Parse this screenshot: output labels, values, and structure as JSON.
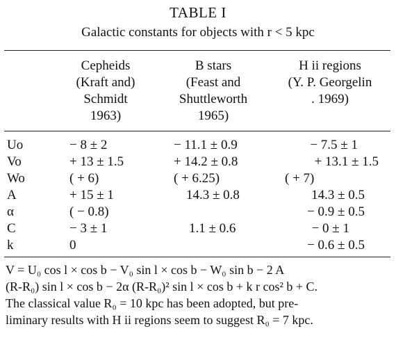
{
  "title": "TABLE I",
  "subtitle": "Galactic constants for objects with r < 5 kpc",
  "columns": [
    [
      "Cepheids",
      "(Kraft and)",
      "Schmidt",
      "1963)"
    ],
    [
      "B stars",
      "(Feast and",
      "Shuttleworth",
      "1965)"
    ],
    [
      "H ii regions",
      "(Y. P. Georgelin",
      ". 1969)"
    ]
  ],
  "rows": [
    {
      "label": "Uo",
      "c1": "− 8 ± 2",
      "c2": "− 11.1 ± 0.9",
      "c3": "− 7.5 ± 1"
    },
    {
      "label": "Vo",
      "c1": "+ 13 ± 1.5",
      "c2": "+ 14.2 ± 0.8",
      "c3": "+ 13.1 ± 1.5"
    },
    {
      "label": "Wo",
      "c1": "( + 6)",
      "c2": "( + 6.25)",
      "c3": "( + 7)"
    },
    {
      "label": "A",
      "c1": "+ 15 ± 1",
      "c2": "14.3 ± 0.8",
      "c3": "14.3 ± 0.5"
    },
    {
      "label": "α",
      "c1": "( − 0.8)",
      "c2": "",
      "c3": "− 0.9 ± 0.5"
    },
    {
      "label": "C",
      "c1": "− 3 ± 1",
      "c2": "1.1 ± 0.6",
      "c3": "− 0 ± 1"
    },
    {
      "label": "k",
      "c1": "0",
      "c2": "",
      "c3": "− 0.6 ± 0.5"
    }
  ],
  "footnote": [
    "V = U₀ cos  l × cos  b − V₀  sin  l × cos  b − W₀  sin  b − 2  A",
    "(R-R₀) sin l × cos b − 2α (R-R₀)² sin l × cos b + k r cos² b + C.",
    "The classical value R₀ = 10 kpc has been adopted, but pre-",
    "liminary results with H ii regions seem to suggest R₀ = 7 kpc."
  ]
}
